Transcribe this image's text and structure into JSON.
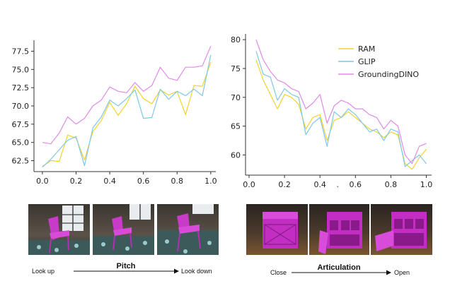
{
  "colors": {
    "RAM": "#f2d230",
    "GLIP": "#7ec8e8",
    "GroundingDINO": "#e08ae8"
  },
  "chart_data": [
    {
      "type": "line",
      "xlim": [
        -0.05,
        1.03
      ],
      "ylim": [
        61.0,
        79.0
      ],
      "xticks": [
        "0.0",
        "0.2",
        "0.4",
        "0.6",
        "0.8",
        "1.0"
      ],
      "yticks": [
        "62.5",
        "65.0",
        "67.5",
        "70.0",
        "72.5",
        "75.0",
        "77.5"
      ],
      "x": [
        0.0,
        0.05,
        0.1,
        0.15,
        0.2,
        0.25,
        0.3,
        0.35,
        0.4,
        0.45,
        0.5,
        0.55,
        0.6,
        0.65,
        0.7,
        0.75,
        0.8,
        0.85,
        0.9,
        0.95,
        1.0
      ],
      "series": [
        {
          "name": "RAM",
          "values": [
            61.7,
            62.5,
            62.4,
            66.0,
            65.6,
            62.6,
            66.5,
            68.0,
            70.5,
            68.7,
            70.3,
            72.7,
            71.0,
            70.3,
            72.2,
            71.5,
            72.0,
            68.8,
            72.8,
            72.7,
            76.0
          ]
        },
        {
          "name": "GLIP",
          "values": [
            61.6,
            62.7,
            64.0,
            65.3,
            65.8,
            61.8,
            67.0,
            68.5,
            70.8,
            70.0,
            71.0,
            72.2,
            68.3,
            68.4,
            72.3,
            70.9,
            72.0,
            71.4,
            72.3,
            71.4,
            77.0
          ]
        },
        {
          "name": "GroundingDINO",
          "values": [
            65.0,
            64.8,
            66.3,
            68.5,
            67.5,
            68.3,
            70.0,
            70.8,
            72.6,
            72.0,
            71.8,
            73.2,
            72.0,
            72.8,
            75.3,
            73.8,
            73.5,
            75.3,
            75.3,
            75.5,
            78.2
          ]
        }
      ]
    },
    {
      "type": "line",
      "xlim": [
        -0.02,
        1.03
      ],
      "ylim": [
        56.5,
        81.0
      ],
      "xticks": [
        "0.0",
        "0.2",
        "0.4",
        ".",
        "0.6",
        "0.8",
        "1.0"
      ],
      "yticks": [
        "60",
        "65",
        "70",
        "75",
        "80"
      ],
      "x": [
        0.04,
        0.08,
        0.12,
        0.16,
        0.2,
        0.24,
        0.28,
        0.32,
        0.36,
        0.4,
        0.44,
        0.48,
        0.52,
        0.56,
        0.6,
        0.64,
        0.68,
        0.72,
        0.76,
        0.8,
        0.84,
        0.88,
        0.92,
        0.96,
        1.0
      ],
      "series": [
        {
          "name": "RAM",
          "values": [
            76.5,
            73.0,
            70.5,
            68.0,
            70.5,
            70.0,
            68.8,
            64.5,
            66.5,
            67.0,
            62.5,
            66.0,
            66.5,
            67.5,
            66.5,
            65.5,
            64.5,
            64.0,
            63.0,
            64.0,
            63.5,
            58.5,
            57.5,
            59.5,
            61.0
          ]
        },
        {
          "name": "GLIP",
          "values": [
            78.0,
            74.0,
            73.5,
            69.5,
            71.5,
            70.5,
            70.0,
            63.5,
            65.5,
            66.5,
            61.5,
            67.5,
            66.5,
            68.0,
            67.0,
            65.5,
            64.0,
            64.5,
            62.5,
            64.5,
            64.0,
            58.0,
            59.0,
            60.0,
            58.5
          ]
        },
        {
          "name": "GroundingDINO",
          "values": [
            80.0,
            76.5,
            74.5,
            73.0,
            72.5,
            71.5,
            71.0,
            68.0,
            69.0,
            70.5,
            65.5,
            68.5,
            69.5,
            69.0,
            68.0,
            68.0,
            67.0,
            66.5,
            64.5,
            66.0,
            65.0,
            60.0,
            58.5,
            61.5,
            62.0
          ]
        }
      ]
    }
  ],
  "legend": [
    "RAM",
    "GLIP",
    "GroundingDINO"
  ],
  "captions": {
    "left_start": "Look up",
    "left_title": "Pitch",
    "left_end": "Look down",
    "right_start": "Close",
    "right_title": "Articulation",
    "right_end": "Open"
  }
}
